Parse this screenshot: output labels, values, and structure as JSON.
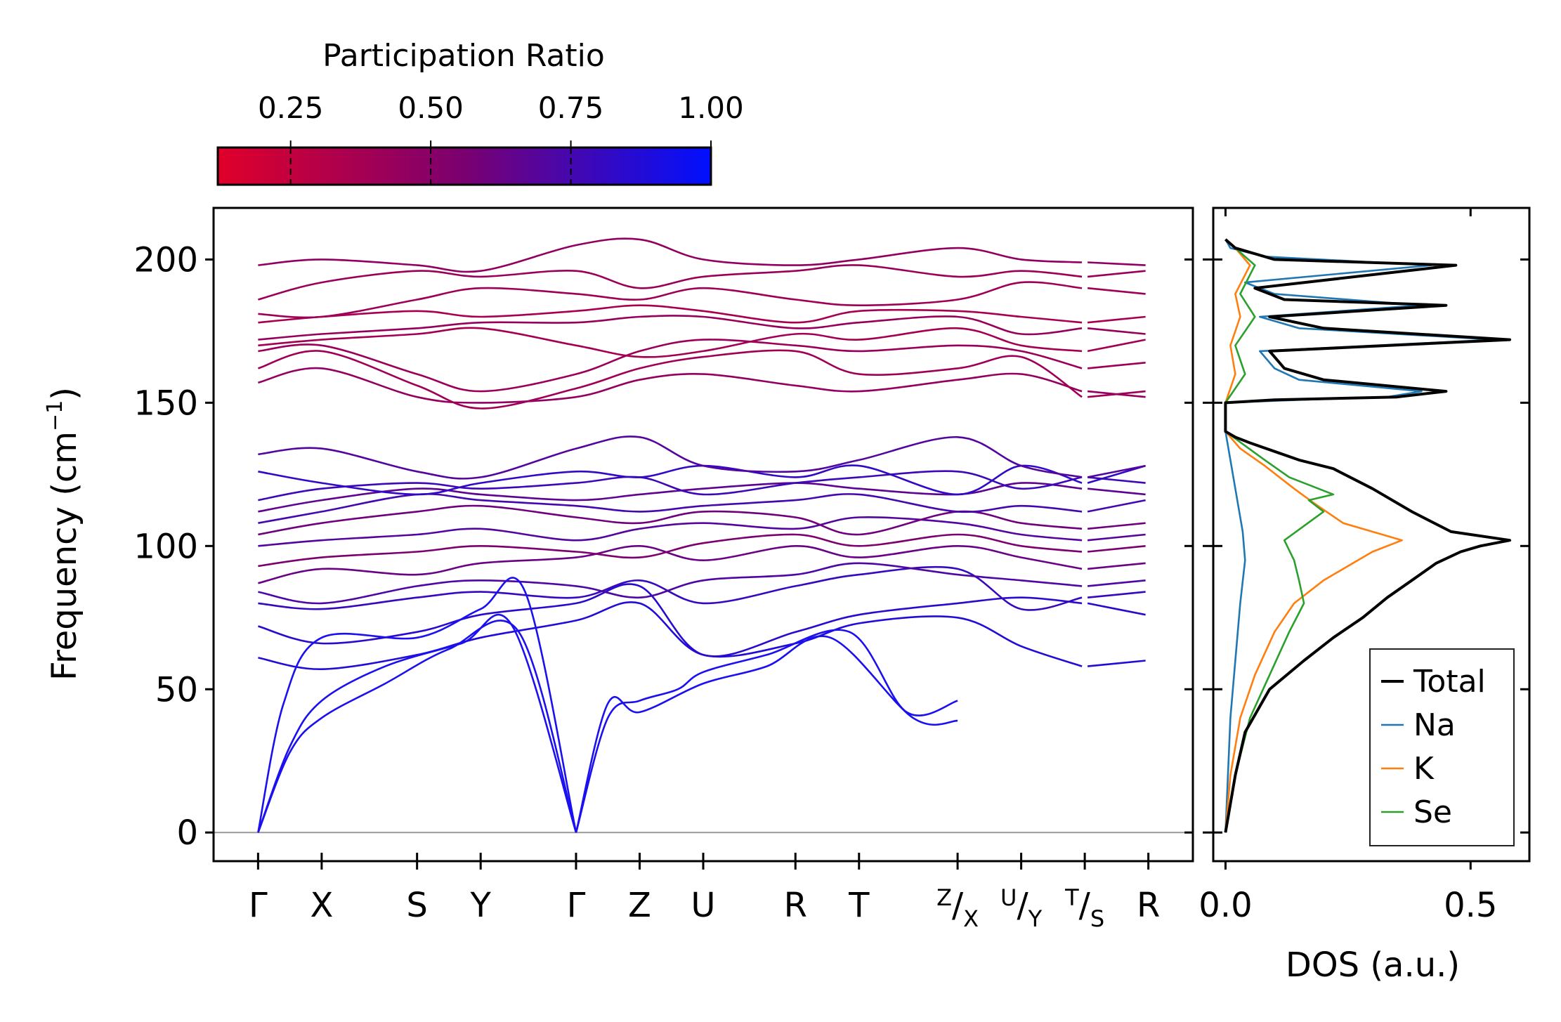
{
  "figure": {
    "background": "#ffffff"
  },
  "colorbar": {
    "title": "Participation Ratio",
    "ticks": [
      0.25,
      0.5,
      0.75,
      1.0
    ],
    "tick_labels": [
      "0.25",
      "0.50",
      "0.75",
      "1.00"
    ],
    "range": [
      0.12,
      1.0
    ],
    "colors": {
      "low": "#e0002a",
      "mid": "#7a0070",
      "high": "#0010ff"
    }
  },
  "chart_data": [
    {
      "type": "line",
      "name": "phonon-dispersion",
      "title": "",
      "xlabel": "",
      "ylabel": "Frequency (cm",
      "ylabel_sup": "−1",
      "ylabel_close": ")",
      "ylim": [
        -10,
        218
      ],
      "yticks": [
        0,
        50,
        100,
        150,
        200
      ],
      "ytick_labels": [
        "0",
        "50",
        "100",
        "150",
        "200"
      ],
      "kpath_labels": [
        "Γ",
        "X",
        "S",
        "Y",
        "Γ",
        "Z",
        "U",
        "R",
        "T",
        "Z/X",
        "U/Y",
        "T/S",
        "R"
      ],
      "kpath_positions": [
        0,
        1,
        2.5,
        3.5,
        5,
        6,
        7,
        8.45,
        9.45,
        11,
        12,
        13,
        14
      ],
      "xlim": [
        -0.7,
        14.7
      ],
      "segments": [
        [
          0,
          11
        ],
        [
          11,
          12
        ],
        [
          12,
          13
        ],
        [
          13,
          14
        ]
      ],
      "zero_line_color": "#999999",
      "acoustic_branches": [
        {
          "x": [
            0,
            0.5,
            1,
            2,
            3.2,
            4,
            5
          ],
          "y": [
            0,
            30,
            46,
            58,
            66,
            72,
            0
          ]
        },
        {
          "x": [
            0,
            0.5,
            1,
            2,
            3,
            4.1,
            5
          ],
          "y": [
            0,
            28,
            40,
            52,
            64,
            70,
            0
          ]
        },
        {
          "x": [
            0,
            0.4,
            1,
            2.5,
            3.5,
            4.2,
            5
          ],
          "y": [
            0,
            45,
            68,
            68,
            78,
            84,
            0
          ]
        },
        {
          "x": [
            5,
            5.5,
            6,
            6.6,
            7,
            8,
            9.3,
            10.2,
            11
          ],
          "y": [
            0,
            40,
            46,
            50,
            56,
            62,
            70,
            42,
            46
          ]
        },
        {
          "x": [
            5,
            5.5,
            6,
            7,
            8,
            9,
            10.3,
            11
          ],
          "y": [
            0,
            45,
            42,
            52,
            58,
            68,
            40,
            39
          ]
        }
      ],
      "optical_mid": [
        {
          "pr": 0.88,
          "y": [
            61,
            57,
            62,
            68,
            74,
            80,
            62,
            66,
            73,
            75,
            65,
            58,
            60,
            62
          ]
        },
        {
          "pr": 0.85,
          "y": [
            72,
            66,
            70,
            76,
            80,
            86,
            62,
            70,
            76,
            80,
            82,
            80,
            76,
            70
          ]
        },
        {
          "pr": 0.8,
          "y": [
            80,
            78,
            82,
            84,
            82,
            88,
            80,
            86,
            90,
            92,
            78,
            82,
            84,
            78
          ]
        },
        {
          "pr": 0.72,
          "y": [
            84,
            80,
            86,
            88,
            86,
            82,
            88,
            90,
            94,
            90,
            88,
            86,
            88,
            86
          ]
        },
        {
          "pr": 0.62,
          "y": [
            87,
            92,
            90,
            94,
            96,
            100,
            95,
            100,
            96,
            100,
            96,
            92,
            94,
            90
          ]
        },
        {
          "pr": 0.55,
          "y": [
            93,
            96,
            98,
            100,
            98,
            96,
            101,
            104,
            100,
            104,
            100,
            98,
            100,
            96
          ]
        },
        {
          "pr": 0.7,
          "y": [
            100,
            102,
            104,
            106,
            102,
            106,
            108,
            106,
            110,
            108,
            104,
            102,
            104,
            100
          ]
        },
        {
          "pr": 0.6,
          "y": [
            104,
            108,
            112,
            114,
            110,
            108,
            112,
            110,
            104,
            112,
            108,
            106,
            108,
            104
          ]
        },
        {
          "pr": 0.75,
          "y": [
            108,
            112,
            118,
            116,
            114,
            112,
            114,
            116,
            118,
            112,
            114,
            112,
            116,
            118
          ]
        },
        {
          "pr": 0.66,
          "y": [
            112,
            116,
            120,
            118,
            116,
            118,
            120,
            122,
            120,
            118,
            122,
            120,
            118,
            120
          ]
        },
        {
          "pr": 0.78,
          "y": [
            116,
            120,
            122,
            120,
            122,
            124,
            118,
            122,
            124,
            126,
            120,
            124,
            122,
            124
          ]
        },
        {
          "pr": 0.82,
          "y": [
            126,
            122,
            118,
            122,
            126,
            124,
            128,
            124,
            128,
            118,
            128,
            122,
            128,
            124
          ]
        },
        {
          "pr": 0.7,
          "y": [
            132,
            134,
            126,
            124,
            134,
            138,
            128,
            126,
            130,
            138,
            128,
            124,
            128,
            124
          ]
        }
      ],
      "optical_high": [
        {
          "pr": 0.45,
          "y": [
            157,
            162,
            152,
            150,
            152,
            158,
            160,
            156,
            154,
            158,
            160,
            154,
            152,
            154
          ]
        },
        {
          "pr": 0.4,
          "y": [
            162,
            168,
            156,
            148,
            155,
            162,
            166,
            168,
            160,
            162,
            166,
            152,
            154,
            154
          ]
        },
        {
          "pr": 0.42,
          "y": [
            168,
            170,
            160,
            154,
            160,
            168,
            172,
            170,
            168,
            170,
            168,
            162,
            164,
            164
          ]
        },
        {
          "pr": 0.38,
          "y": [
            170,
            172,
            174,
            176,
            170,
            166,
            168,
            174,
            172,
            176,
            170,
            168,
            172,
            172
          ]
        },
        {
          "pr": 0.44,
          "y": [
            172,
            174,
            176,
            178,
            178,
            180,
            180,
            176,
            178,
            180,
            174,
            176,
            174,
            173
          ]
        },
        {
          "pr": 0.36,
          "y": [
            178,
            180,
            182,
            180,
            182,
            184,
            182,
            178,
            182,
            182,
            180,
            178,
            180,
            180
          ]
        },
        {
          "pr": 0.4,
          "y": [
            181,
            180,
            186,
            190,
            188,
            186,
            190,
            186,
            184,
            186,
            192,
            190,
            188,
            190
          ]
        },
        {
          "pr": 0.42,
          "y": [
            186,
            192,
            196,
            194,
            196,
            190,
            194,
            196,
            198,
            194,
            196,
            194,
            196,
            197
          ]
        },
        {
          "pr": 0.46,
          "y": [
            198,
            200,
            198,
            196,
            205,
            207,
            200,
            198,
            200,
            204,
            200,
            199,
            198,
            197
          ]
        }
      ]
    },
    {
      "type": "line",
      "name": "density-of-states",
      "title": "",
      "xlabel": "DOS (a.u.)",
      "ylabel": "",
      "xlim": [
        -0.025,
        0.62
      ],
      "ylim": [
        -10,
        218
      ],
      "xticks": [
        0.0,
        0.5
      ],
      "xtick_labels": [
        "0.0",
        "0.5"
      ],
      "legend_position": "lower-right",
      "series": [
        {
          "name": "Total",
          "color": "#000000",
          "x": [
            0.0,
            0.02,
            0.04,
            0.09,
            0.16,
            0.22,
            0.28,
            0.33,
            0.38,
            0.43,
            0.48,
            0.52,
            0.58,
            0.46,
            0.38,
            0.3,
            0.22,
            0.15,
            0.1,
            0.05,
            0.02,
            0.0,
            0.0,
            0.1,
            0.35,
            0.45,
            0.2,
            0.12,
            0.09,
            0.58,
            0.2,
            0.09,
            0.45,
            0.12,
            0.06,
            0.47,
            0.1,
            0.02,
            0.0
          ],
          "y": [
            0,
            20,
            35,
            50,
            60,
            68,
            75,
            82,
            88,
            94,
            98,
            100,
            102,
            105,
            112,
            120,
            127,
            130,
            133,
            136,
            138,
            140,
            150,
            151,
            152,
            154,
            158,
            162,
            168,
            172,
            176,
            180,
            184,
            186,
            190,
            198,
            200,
            204,
            207
          ]
        },
        {
          "name": "Na",
          "color": "#1f77b4",
          "x": [
            0.0,
            0.005,
            0.01,
            0.02,
            0.03,
            0.04,
            0.035,
            0.02,
            0.01,
            0.0,
            0.0,
            0.15,
            0.33,
            0.4,
            0.15,
            0.1,
            0.07,
            0.55,
            0.15,
            0.07,
            0.4,
            0.1,
            0.04,
            0.42,
            0.08,
            0.01,
            0.0
          ],
          "y": [
            0,
            20,
            40,
            60,
            80,
            95,
            105,
            120,
            130,
            140,
            150,
            151,
            152,
            154,
            158,
            162,
            168,
            172,
            176,
            180,
            184,
            188,
            192,
            198,
            201,
            204,
            207
          ]
        },
        {
          "name": "K",
          "color": "#ff7f0e",
          "x": [
            0.0,
            0.01,
            0.03,
            0.06,
            0.1,
            0.14,
            0.2,
            0.26,
            0.3,
            0.36,
            0.24,
            0.18,
            0.14,
            0.08,
            0.03,
            0.0,
            0.0,
            0.02,
            0.01,
            0.03,
            0.02,
            0.05,
            0.02,
            0.0
          ],
          "y": [
            0,
            20,
            40,
            55,
            70,
            80,
            88,
            94,
            98,
            102,
            108,
            115,
            120,
            128,
            134,
            140,
            150,
            160,
            170,
            180,
            188,
            198,
            204,
            207
          ]
        },
        {
          "name": "Se",
          "color": "#2ca02c",
          "x": [
            0.0,
            0.02,
            0.05,
            0.09,
            0.13,
            0.16,
            0.15,
            0.14,
            0.12,
            0.16,
            0.2,
            0.17,
            0.22,
            0.13,
            0.08,
            0.04,
            0.0,
            0.0,
            0.04,
            0.02,
            0.06,
            0.03,
            0.06,
            0.02,
            0.0
          ],
          "y": [
            0,
            20,
            40,
            55,
            70,
            80,
            88,
            95,
            102,
            107,
            112,
            116,
            118,
            124,
            130,
            135,
            140,
            150,
            160,
            170,
            180,
            188,
            198,
            204,
            207
          ]
        }
      ],
      "legend": [
        "Total",
        "Na",
        "K",
        "Se"
      ]
    }
  ]
}
